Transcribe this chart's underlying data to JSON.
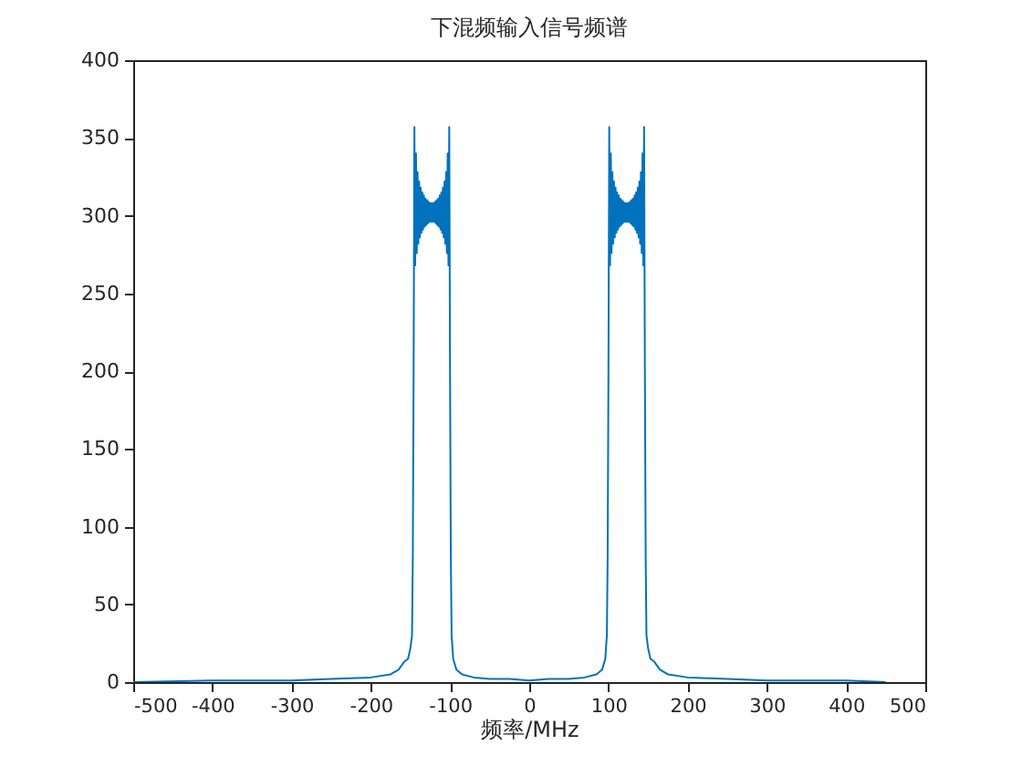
{
  "chart_data": {
    "type": "line",
    "title": "下混频输入信号频谱",
    "xlabel": "频率/MHz",
    "x": [
      -500,
      -400,
      -300,
      -250,
      -200,
      -175,
      -165,
      -158,
      -153,
      -150,
      -148,
      -147,
      -146,
      -145,
      -144,
      -143,
      -142,
      -141,
      -140,
      -139,
      -138,
      -137,
      -136,
      -135,
      -134,
      -133,
      -132,
      -131,
      -130,
      -129,
      -128,
      -127,
      -126,
      -125,
      -124,
      -123,
      -122,
      -121,
      -120,
      -119,
      -118,
      -117,
      -116,
      -115,
      -114,
      -113,
      -112,
      -111,
      -110,
      -109,
      -108,
      -107,
      -106,
      -105,
      -104,
      -103,
      -102,
      -101,
      -100,
      -99,
      -98,
      -96,
      -92,
      -85,
      -70,
      -50,
      -25,
      0,
      25,
      50,
      70,
      85,
      92,
      96,
      98,
      99,
      100,
      101,
      102,
      103,
      104,
      105,
      106,
      107,
      108,
      109,
      110,
      111,
      112,
      113,
      114,
      115,
      116,
      117,
      118,
      119,
      120,
      121,
      122,
      123,
      124,
      125,
      126,
      127,
      128,
      129,
      130,
      131,
      132,
      133,
      134,
      135,
      136,
      137,
      138,
      139,
      140,
      141,
      142,
      143,
      144,
      145,
      146,
      147,
      148,
      150,
      153,
      158,
      165,
      175,
      200,
      250,
      300,
      400,
      450
    ],
    "series": [
      {
        "color": "#0072bd",
        "values": [
          0,
          1,
          1,
          2,
          3,
          5,
          8,
          13,
          15,
          22,
          30,
          80,
          200,
          357,
          268,
          340,
          276,
          328,
          282,
          322,
          286,
          318,
          289,
          315,
          291,
          313,
          293,
          311,
          294,
          310,
          295,
          309,
          296,
          308,
          296,
          308,
          296,
          308,
          296,
          309,
          295,
          310,
          294,
          311,
          293,
          313,
          291,
          315,
          289,
          318,
          286,
          322,
          282,
          328,
          276,
          340,
          268,
          357,
          200,
          80,
          30,
          15,
          8,
          5,
          3,
          2,
          2,
          1,
          2,
          2,
          3,
          5,
          8,
          15,
          30,
          80,
          200,
          357,
          268,
          340,
          276,
          328,
          282,
          322,
          286,
          318,
          289,
          315,
          291,
          313,
          293,
          311,
          294,
          310,
          295,
          309,
          296,
          308,
          296,
          308,
          296,
          308,
          296,
          309,
          295,
          310,
          294,
          311,
          293,
          313,
          291,
          315,
          289,
          318,
          286,
          322,
          282,
          328,
          276,
          340,
          268,
          357,
          200,
          80,
          30,
          22,
          15,
          13,
          8,
          5,
          3,
          2,
          1,
          1,
          0
        ]
      }
    ],
    "xlim": [
      -500,
      500
    ],
    "ylim": [
      0,
      400
    ],
    "xticks": [
      -500,
      -400,
      -300,
      -200,
      -100,
      0,
      100,
      200,
      300,
      400,
      500
    ],
    "yticks": [
      0,
      50,
      100,
      150,
      200,
      250,
      300,
      350,
      400
    ],
    "grid": false
  }
}
